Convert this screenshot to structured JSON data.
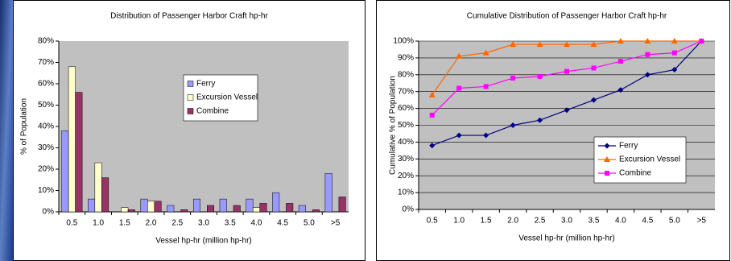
{
  "chart_data": [
    {
      "type": "bar",
      "title": "Distribution of Passenger Harbor Craft hp-hr",
      "x_label": "Vessel hp-hr (million hp-hr)",
      "y_label": "% of Population",
      "categories": [
        "0.5",
        "1.0",
        "1.5",
        "2.0",
        "2.5",
        "3.0",
        "3.5",
        "4.0",
        "4.5",
        "5.0",
        ">5"
      ],
      "series": [
        {
          "name": "Ferry",
          "color": "#9999ff",
          "values": [
            38,
            6,
            0,
            6,
            3,
            6,
            6,
            6,
            9,
            3,
            18
          ]
        },
        {
          "name": "Excursion Vessel",
          "color": "#ffffcc",
          "values": [
            68,
            23,
            2,
            5,
            0,
            0,
            0,
            2,
            0,
            0,
            0
          ]
        },
        {
          "name": "Combine",
          "color": "#993366",
          "values": [
            56,
            16,
            1,
            5,
            1,
            3,
            3,
            4,
            4,
            1,
            7
          ]
        }
      ],
      "ylim": [
        0,
        80
      ],
      "yticks": [
        {
          "value": 0,
          "label": "0%"
        },
        {
          "value": 10,
          "label": "10%"
        },
        {
          "value": 20,
          "label": "20%"
        },
        {
          "value": 30,
          "label": "30%"
        },
        {
          "value": 40,
          "label": "40%"
        },
        {
          "value": 50,
          "label": "50%"
        },
        {
          "value": 60,
          "label": "60%"
        },
        {
          "value": 70,
          "label": "70%"
        },
        {
          "value": 80,
          "label": "80%"
        }
      ],
      "grid": false,
      "legend": "upper center"
    },
    {
      "type": "line",
      "title": "Cumulative Distribution of Passenger Harbor Craft hp-hr",
      "x_label": "Vessel hp-hr (million hp-hr)",
      "y_label": "Cumulative % of Population",
      "categories": [
        "0.5",
        "1.0",
        "1.5",
        "2.0",
        "2.5",
        "3.0",
        "3.5",
        "4.0",
        "4.5",
        "5.0",
        ">5"
      ],
      "series": [
        {
          "name": "Ferry",
          "color": "#000080",
          "marker": "diamond",
          "values": [
            38,
            44,
            44,
            50,
            53,
            59,
            65,
            71,
            80,
            83,
            100
          ]
        },
        {
          "name": "Excursion Vessel",
          "color": "#ff6600",
          "marker": "triangle",
          "values": [
            68,
            91,
            93,
            98,
            98,
            98,
            98,
            100,
            100,
            100,
            100
          ]
        },
        {
          "name": "Combine",
          "color": "#ff00ff",
          "marker": "square",
          "values": [
            56,
            72,
            73,
            78,
            79,
            82,
            84,
            88,
            92,
            93,
            100
          ]
        }
      ],
      "ylim": [
        0,
        100
      ],
      "yticks": [
        {
          "value": 0,
          "label": "0%"
        },
        {
          "value": 10,
          "label": "10%"
        },
        {
          "value": 20,
          "label": "20%"
        },
        {
          "value": 30,
          "label": "30%"
        },
        {
          "value": 40,
          "label": "40%"
        },
        {
          "value": 50,
          "label": "50%"
        },
        {
          "value": 60,
          "label": "60%"
        },
        {
          "value": 70,
          "label": "70%"
        },
        {
          "value": 80,
          "label": "80%"
        },
        {
          "value": 90,
          "label": "90%"
        },
        {
          "value": 100,
          "label": "100%"
        }
      ],
      "grid": true,
      "legend": "center right"
    }
  ]
}
